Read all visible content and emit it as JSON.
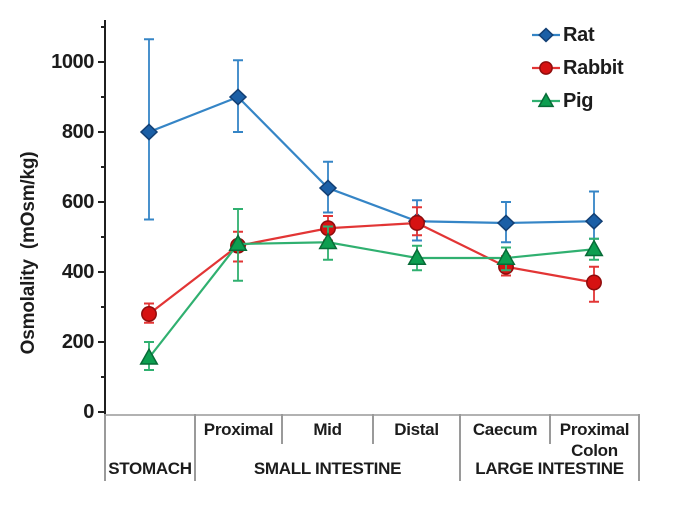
{
  "y_axis": {
    "title": "Osmolality  (mOsm/kg)",
    "tick_labels": [
      "1000",
      "800",
      "600",
      "400",
      "200",
      "0"
    ]
  },
  "axis_table": {
    "sub_labels": [
      "Proximal",
      "Mid",
      "Distal",
      "Caecum",
      "Proximal\nColon"
    ],
    "group_labels": [
      "STOMACH",
      "SMALL INTESTINE",
      "LARGE INTESTINE"
    ]
  },
  "chart_data": {
    "type": "line",
    "title": "",
    "xlabel": "",
    "ylabel": "Osmolality (mOsm/kg)",
    "ylim": [
      0,
      1120
    ],
    "yticks": [
      0,
      200,
      400,
      600,
      800,
      1000
    ],
    "grid": false,
    "error_bars": true,
    "legend_position": "top-right",
    "categories": [
      "Stomach",
      "Small intestine - Proximal",
      "Small intestine - Mid",
      "Small intestine - Distal",
      "Large intestine - Caecum",
      "Large intestine - Proximal colon"
    ],
    "x_groups": [
      {
        "label": "STOMACH",
        "span": [
          0,
          0
        ]
      },
      {
        "label": "SMALL INTESTINE",
        "span": [
          1,
          3
        ]
      },
      {
        "label": "LARGE INTESTINE",
        "span": [
          4,
          5
        ]
      }
    ],
    "series": [
      {
        "name": "Rat",
        "marker": "diamond",
        "line_color": "#3585c6",
        "marker_fill": "#1b5fa6",
        "marker_stroke": "#123f74",
        "values": [
          800,
          900,
          640,
          545,
          540,
          545
        ],
        "err_low": [
          550,
          800,
          570,
          490,
          485,
          495
        ],
        "err_high": [
          1065,
          1005,
          715,
          605,
          600,
          630
        ]
      },
      {
        "name": "Rabbit",
        "marker": "circle",
        "line_color": "#e23535",
        "marker_fill": "#d61212",
        "marker_stroke": "#8f0d0d",
        "values": [
          280,
          475,
          525,
          540,
          415,
          370
        ],
        "err_low": [
          255,
          430,
          490,
          505,
          390,
          315
        ],
        "err_high": [
          310,
          515,
          560,
          585,
          445,
          415
        ]
      },
      {
        "name": "Pig",
        "marker": "triangle",
        "line_color": "#30b070",
        "marker_fill": "#0d9e50",
        "marker_stroke": "#076b37",
        "values": [
          155,
          480,
          485,
          440,
          440,
          465
        ],
        "err_low": [
          120,
          375,
          435,
          405,
          405,
          435
        ],
        "err_high": [
          200,
          580,
          530,
          475,
          470,
          495
        ]
      }
    ]
  }
}
